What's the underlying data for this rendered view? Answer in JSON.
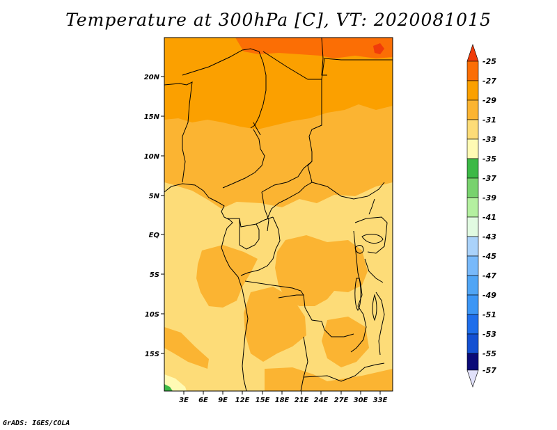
{
  "title": "Temperature at 300hPa [C], VT: 2020081015",
  "credit": "GrADS: IGES/COLA",
  "map": {
    "lat_labels": [
      "20N",
      "15N",
      "10N",
      "5N",
      "EQ",
      "5S",
      "10S",
      "15S"
    ],
    "lon_labels": [
      "3E",
      "6E",
      "9E",
      "12E",
      "15E",
      "18E",
      "21E",
      "24E",
      "27E",
      "30E",
      "33E"
    ]
  },
  "legend": {
    "labels": [
      "-25",
      "-27",
      "-29",
      "-31",
      "-33",
      "-35",
      "-37",
      "-39",
      "-41",
      "-43",
      "-45",
      "-47",
      "-49",
      "-51",
      "-53",
      "-55",
      "-57"
    ],
    "colors": {
      "above_-25": "#f03c0a",
      "-27_-25": "#fb6e05",
      "-29_-27": "#fba000",
      "-31_-29": "#fbb432",
      "-33_-31": "#fddc78",
      "-35_-33": "#fffab4",
      "-37_-35": "#3cb946",
      "-39_-37": "#78d26e",
      "-41_-39": "#b4f0a0",
      "-43_-41": "#e1fae1",
      "-45_-43": "#aad2fa",
      "-47_-45": "#78b9fa",
      "-49_-47": "#50a5f5",
      "-51_-49": "#3c96f5",
      "-53_-51": "#1e6eeb",
      "-55_-53": "#1450d2",
      "below_-57": "#0a0a78",
      "open_low": "#e1e1fa"
    }
  }
}
